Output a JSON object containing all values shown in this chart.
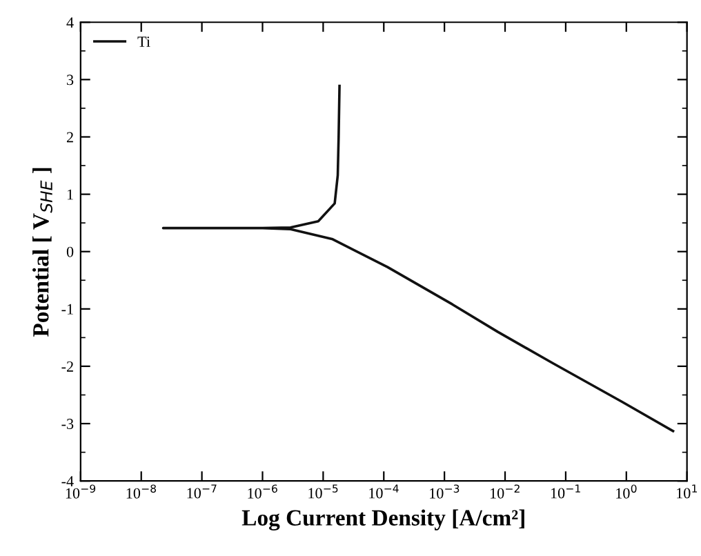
{
  "chart_data": {
    "type": "line",
    "xlabel": "Log Current Density [A/cm²]",
    "ylabel": "Potential [ V$_{SHE}$ ]",
    "log": "x",
    "legend": "top left",
    "grid": false,
    "marker": "none",
    "line_style": "solid",
    "xlim": [
      1e-09,
      10
    ],
    "ylim": [
      -4,
      4
    ],
    "xticks": [
      {
        "value": 1e-09,
        "label": "10$^{−9}$"
      },
      {
        "value": 1e-08,
        "label": "10$^{−8}$"
      },
      {
        "value": 1e-07,
        "label": "10$^{−7}$"
      },
      {
        "value": 1e-06,
        "label": "10$^{−6}$"
      },
      {
        "value": 1e-05,
        "label": "10$^{−5}$"
      },
      {
        "value": 0.0001,
        "label": "10$^{−4}$"
      },
      {
        "value": 0.001,
        "label": "10$^{−3}$"
      },
      {
        "value": 0.01,
        "label": "10$^{−2}$"
      },
      {
        "value": 0.1,
        "label": "10$^{−1}$"
      },
      {
        "value": 1,
        "label": "10$^{0}$"
      },
      {
        "value": 10,
        "label": "10$^{1}$"
      }
    ],
    "yticks": [
      -4,
      -3,
      -2,
      -1,
      0,
      1,
      2,
      3,
      4
    ],
    "series": [
      {
        "name": "Ti",
        "color": "#111111",
        "x": [
          5.9,
          0.85,
          0.062,
          0.0076,
          0.00135,
          0.000115,
          1.4e-05,
          2.9e-06,
          1e-06,
          2.3e-08,
          1e-06,
          2.9e-06,
          8.3e-06,
          1.55e-05,
          1.74e-05,
          1.8e-05,
          1.86e-05
        ],
        "values": [
          -3.13,
          -2.62,
          -1.95,
          -1.4,
          -0.92,
          -0.27,
          0.22,
          0.39,
          0.41,
          0.41,
          0.41,
          0.42,
          0.53,
          0.84,
          1.33,
          2.0,
          2.89
        ]
      }
    ]
  }
}
